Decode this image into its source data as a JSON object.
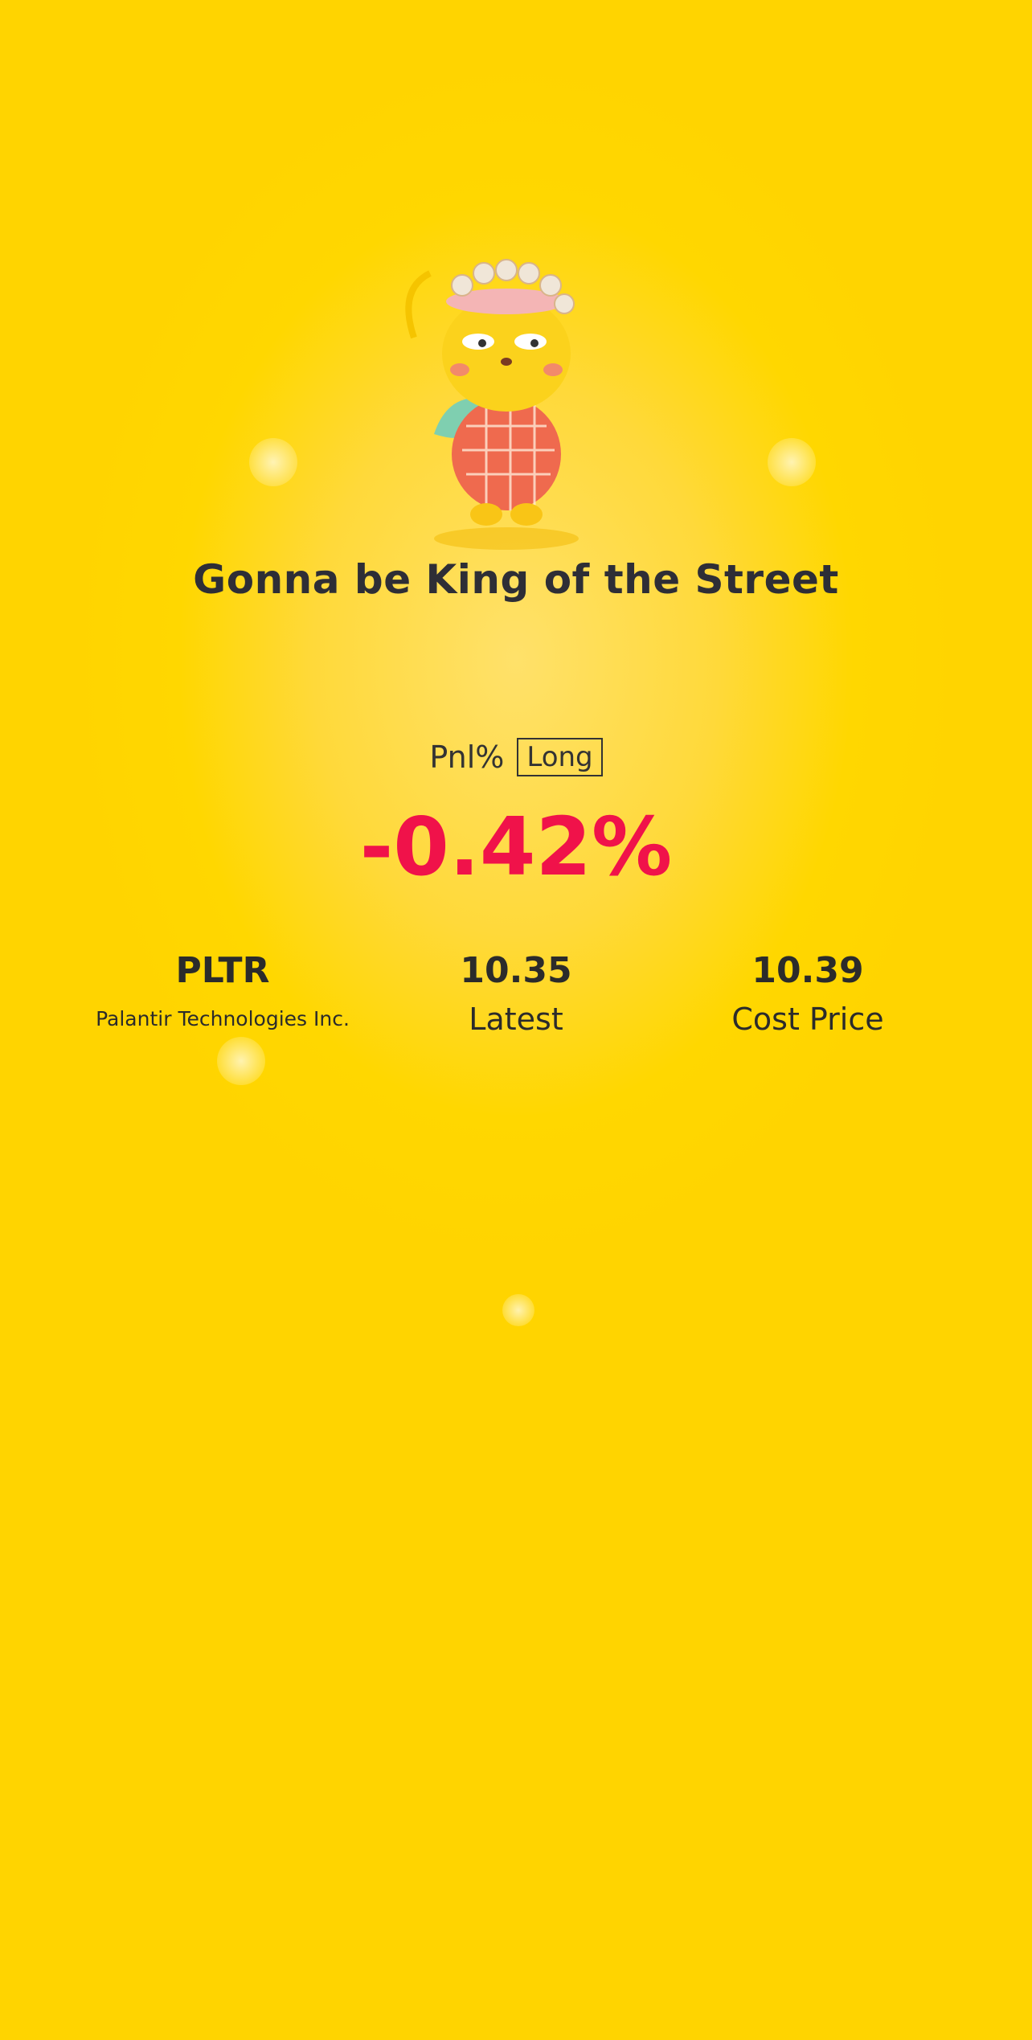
{
  "headline": "Gonna be King of the Street",
  "pnl": {
    "label": "Pnl%",
    "position_badge": "Long",
    "value": "-0.42%",
    "value_color": "#f0124a"
  },
  "stock": {
    "symbol": "PLTR",
    "name": "Palantir Technologies Inc."
  },
  "latest": {
    "value": "10.35",
    "label": "Latest"
  },
  "cost": {
    "value": "10.39",
    "label": "Cost Price"
  },
  "colors": {
    "background": "#ffd700",
    "text": "#2b2b2b"
  },
  "illustration": "tiger-mascot-with-crown"
}
